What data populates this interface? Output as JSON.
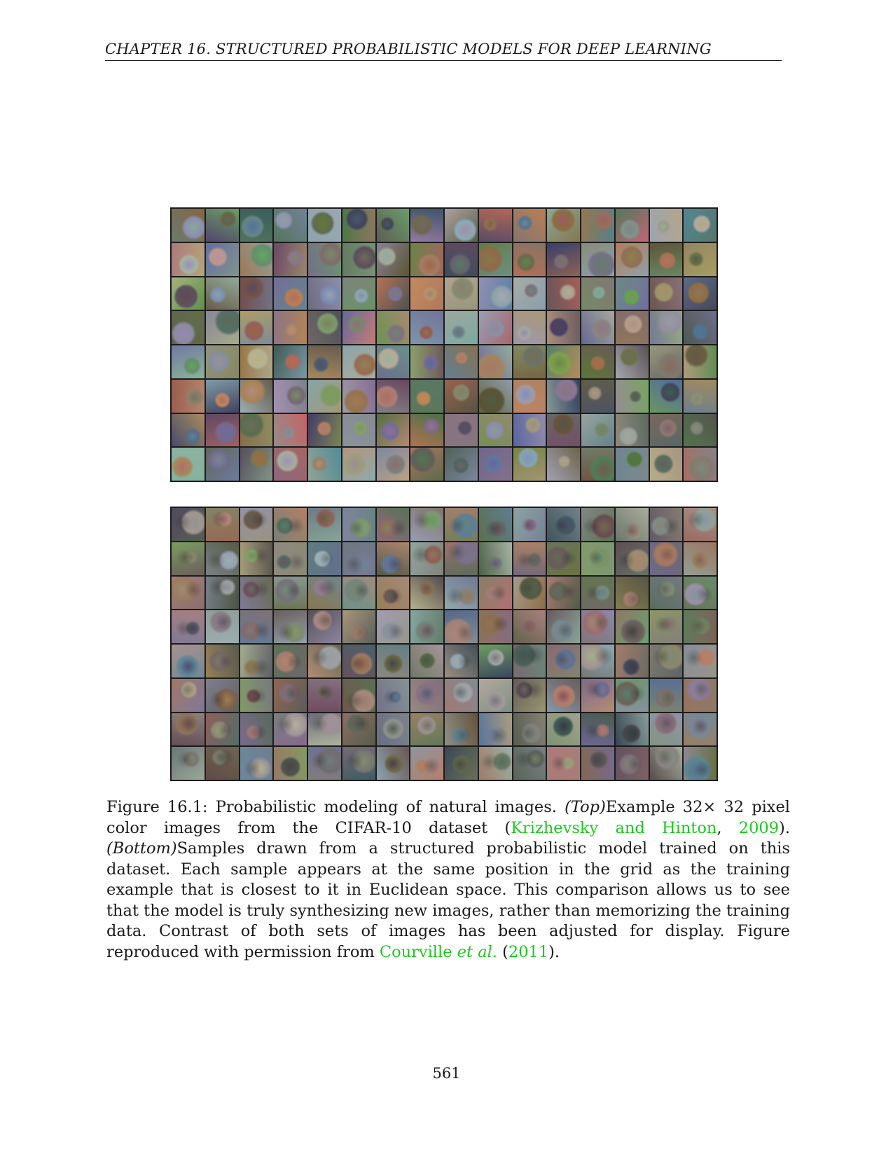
{
  "header": {
    "running_title": "CHAPTER 16.  STRUCTURED PROBABILISTIC MODELS FOR DEEP LEARNING"
  },
  "figure": {
    "label": "Figure 16.1:",
    "caption_intro": " Probabilistic modeling of natural images. ",
    "top_tag": "(Top)",
    "top_text": "Example 32× 32 pixel color images from the CIFAR-10 dataset (",
    "cite1": "Krizhevsky and Hinton",
    "comma": ", ",
    "cite1_year": "2009",
    "close1": "). ",
    "bottom_tag": "(Bottom)",
    "bottom_text": "Samples drawn from a structured probabilistic model trained on this dataset. Each sample appears at the same position in the grid as the training example that is closest to it in Euclidean space. This comparison allows us to see that the model is truly synthesizing new images, rather than memorizing the training data. Contrast of both sets of images has been adjusted for display. Figure reproduced with permission from ",
    "cite2": "Courville ",
    "cite2_etal": "et al.",
    "open2": " (",
    "cite2_year": "2011",
    "close2": ").",
    "grid_rows": 8,
    "grid_cols": 16
  },
  "footer": {
    "page_number": "561"
  }
}
